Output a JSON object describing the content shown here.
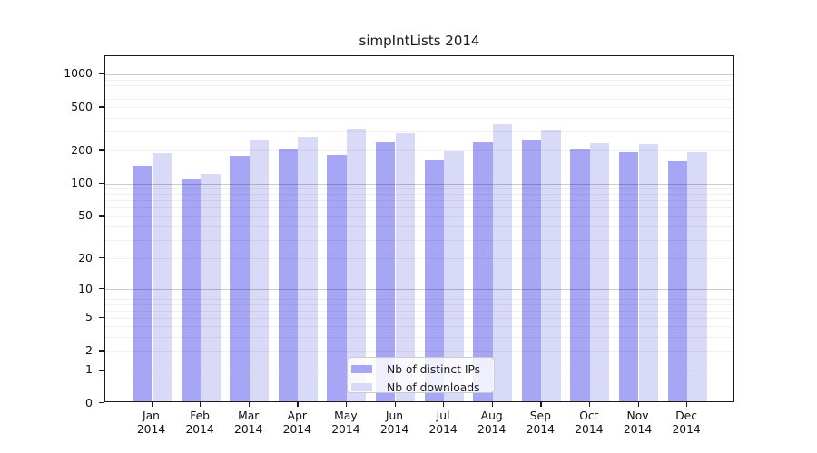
{
  "title": "simpIntLists 2014",
  "chart_data": {
    "type": "bar",
    "title": "simpIntLists 2014",
    "categories": [
      "Jan 2014",
      "Feb 2014",
      "Mar 2014",
      "Apr 2014",
      "May 2014",
      "Jun 2014",
      "Jul 2014",
      "Aug 2014",
      "Sep 2014",
      "Oct 2014",
      "Nov 2014",
      "Dec 2014"
    ],
    "months": [
      "Jan",
      "Feb",
      "Mar",
      "Apr",
      "May",
      "Jun",
      "Jul",
      "Aug",
      "Sep",
      "Oct",
      "Nov",
      "Dec"
    ],
    "year": "2014",
    "series": [
      {
        "name": "Nb of distinct IPs",
        "color": "#a6a6f5",
        "values": [
          140,
          105,
          174,
          196,
          177,
          232,
          156,
          232,
          245,
          202,
          187,
          155
        ]
      },
      {
        "name": "Nb of downloads",
        "color": "#d9d9f8",
        "values": [
          184,
          118,
          245,
          260,
          309,
          277,
          189,
          336,
          302,
          227,
          222,
          186
        ]
      }
    ],
    "xlabel": "",
    "ylabel": "",
    "yscale": "log1p",
    "ylim": [
      0,
      1460
    ],
    "yticks": [
      0,
      1,
      2,
      5,
      10,
      20,
      50,
      100,
      200,
      500,
      1000
    ],
    "major_gridlines": [
      1,
      10,
      100,
      1000
    ],
    "minor_gridlines": [
      2,
      3,
      4,
      5,
      6,
      7,
      8,
      9,
      20,
      30,
      40,
      50,
      60,
      70,
      80,
      90,
      200,
      300,
      400,
      500,
      600,
      700,
      800,
      900
    ],
    "grid": "on",
    "legend_position": "lower center"
  }
}
